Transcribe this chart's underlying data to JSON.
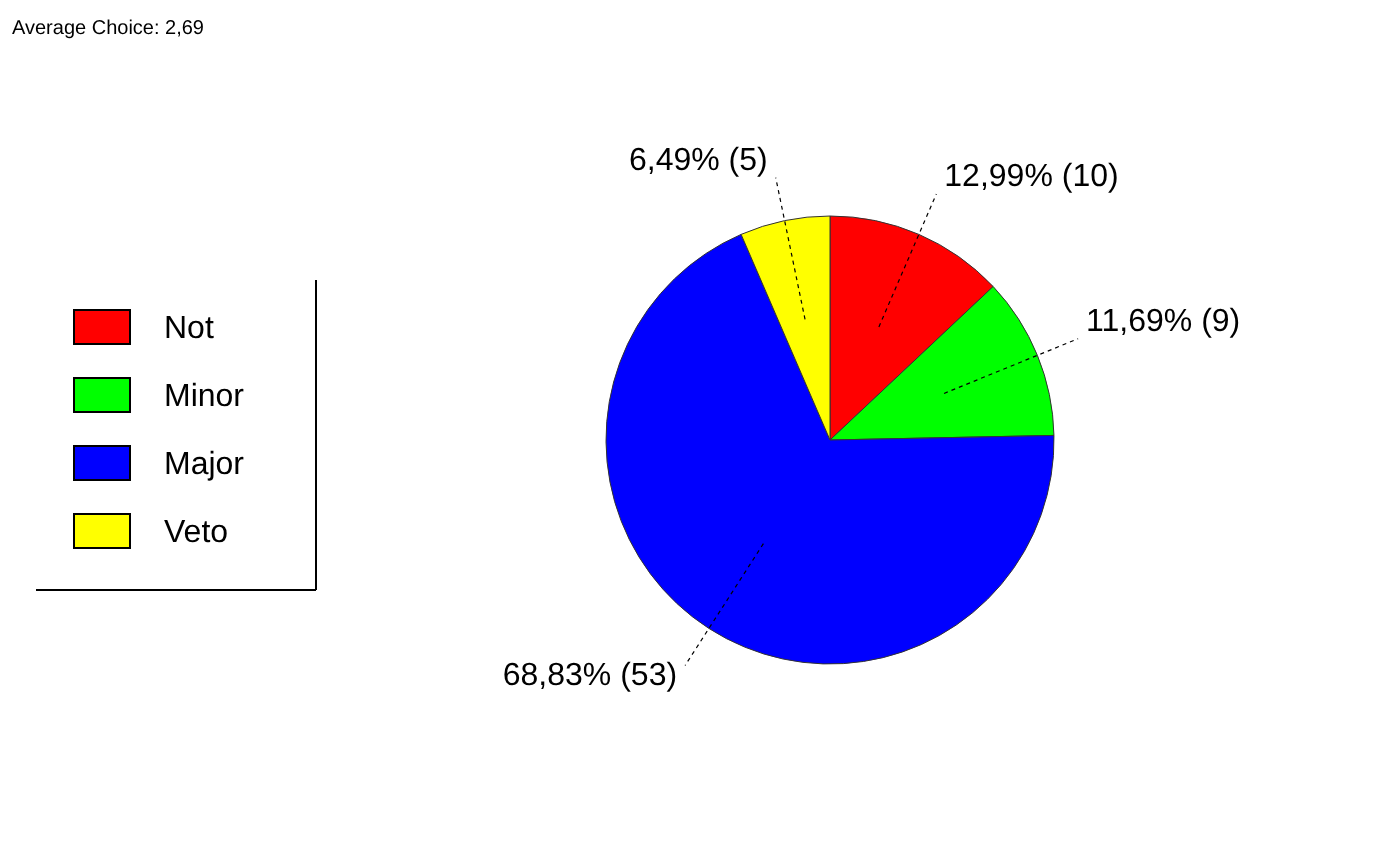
{
  "chart_data": {
    "type": "pie",
    "title": "Average Choice: 2,69",
    "categories": [
      "Not",
      "Minor",
      "Major",
      "Veto"
    ],
    "values": [
      10,
      9,
      53,
      5
    ],
    "colors": [
      "#ff0000",
      "#00ff00",
      "#0000ff",
      "#ffff00"
    ],
    "value_labels": [
      "12,99% (10)",
      "11,69% (9)",
      "68,83% (53)",
      "6,49% (5)"
    ],
    "legend": "left"
  }
}
